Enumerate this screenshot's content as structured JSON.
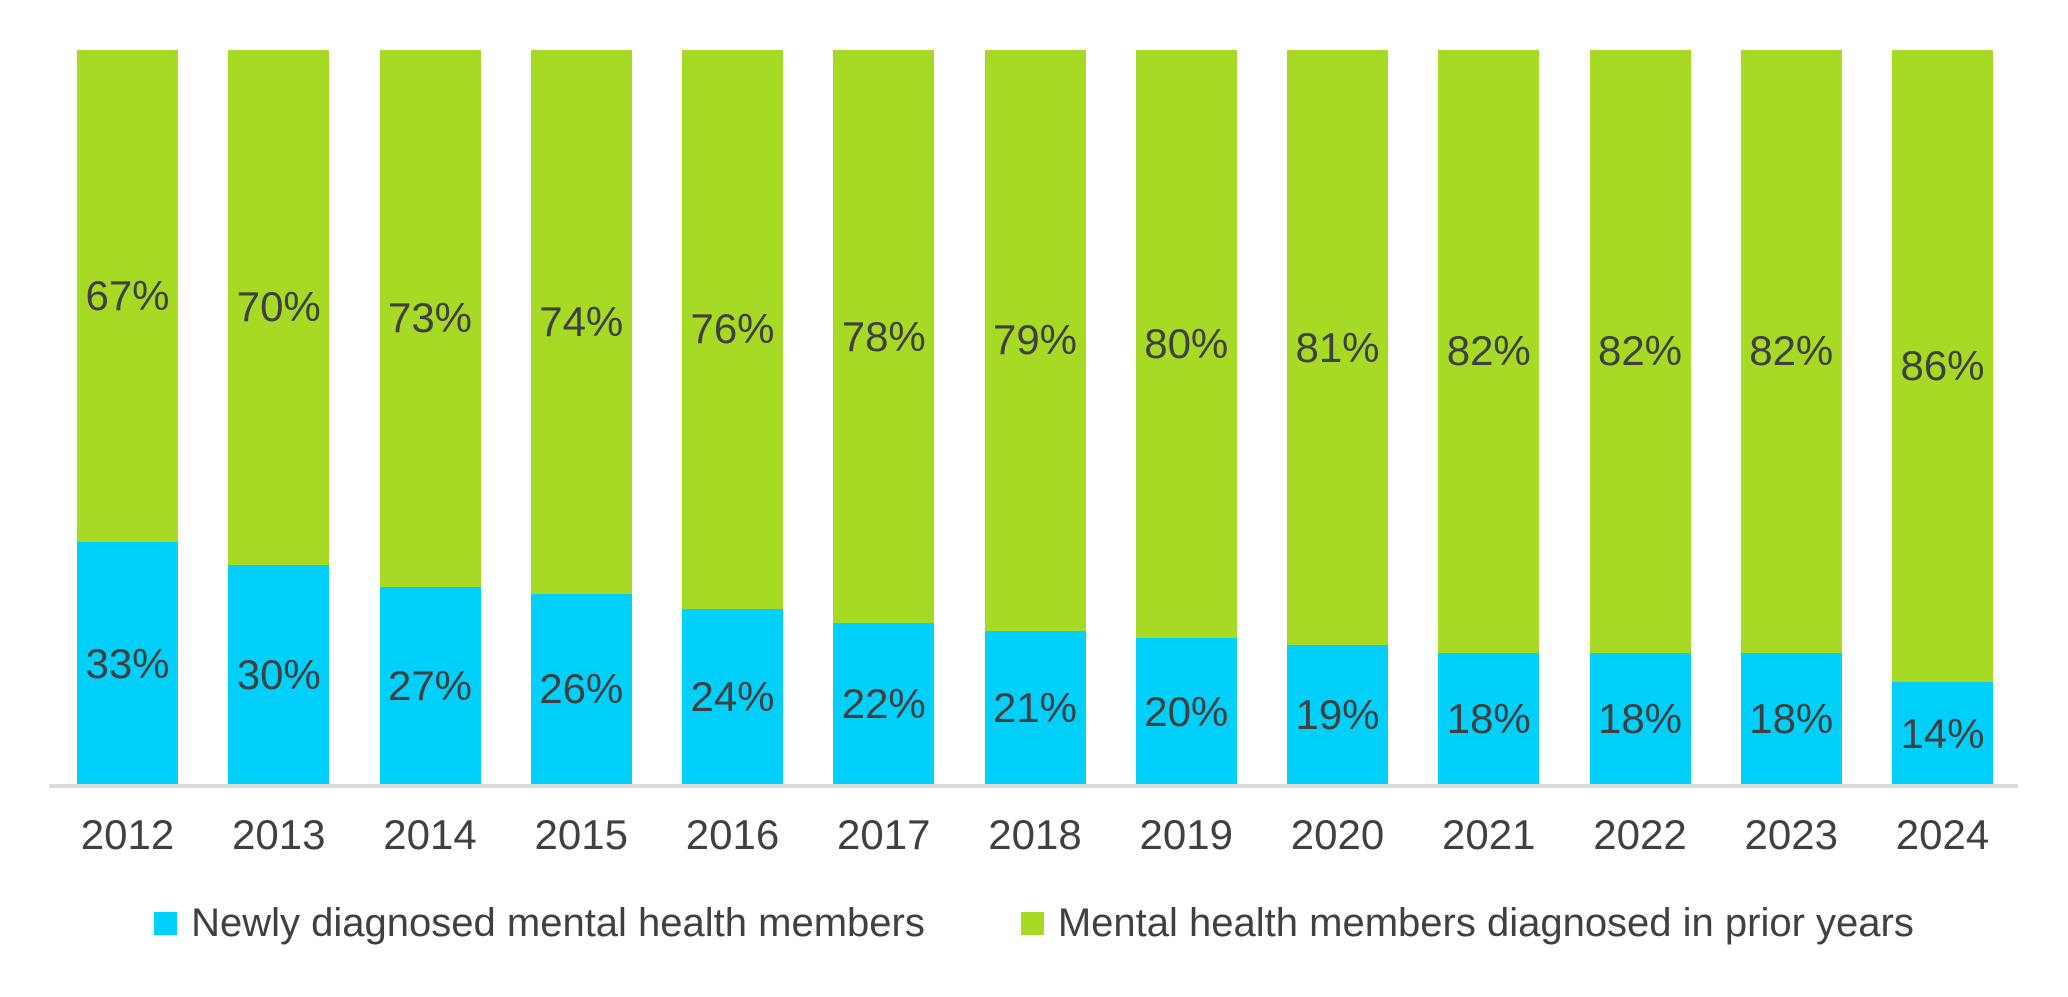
{
  "chart_data": {
    "type": "bar",
    "stacked": true,
    "orientation": "vertical",
    "title": "",
    "xlabel": "",
    "ylabel": "",
    "ylim": [
      0,
      100
    ],
    "grid": false,
    "legend_position": "bottom",
    "axis_line_color": "#dcdcdc",
    "label_color": "#404040",
    "categories": [
      "2012",
      "2013",
      "2014",
      "2015",
      "2016",
      "2017",
      "2018",
      "2019",
      "2020",
      "2021",
      "2022",
      "2023",
      "2024"
    ],
    "series": [
      {
        "name": "Newly diagnosed mental health members",
        "color": "#00d0fa",
        "values": [
          33,
          30,
          27,
          26,
          24,
          22,
          21,
          20,
          19,
          18,
          18,
          18,
          14
        ],
        "labels": [
          "33%",
          "30%",
          "27%",
          "26%",
          "24%",
          "22%",
          "21%",
          "20%",
          "19%",
          "18%",
          "18%",
          "18%",
          "14%"
        ]
      },
      {
        "name": "Mental health members diagnosed in prior years",
        "color": "#a7da25",
        "values": [
          67,
          70,
          73,
          74,
          76,
          78,
          79,
          80,
          81,
          82,
          82,
          82,
          86
        ],
        "labels": [
          "67%",
          "70%",
          "73%",
          "74%",
          "76%",
          "78%",
          "79%",
          "80%",
          "81%",
          "82%",
          "82%",
          "82%",
          "86%"
        ]
      }
    ]
  }
}
